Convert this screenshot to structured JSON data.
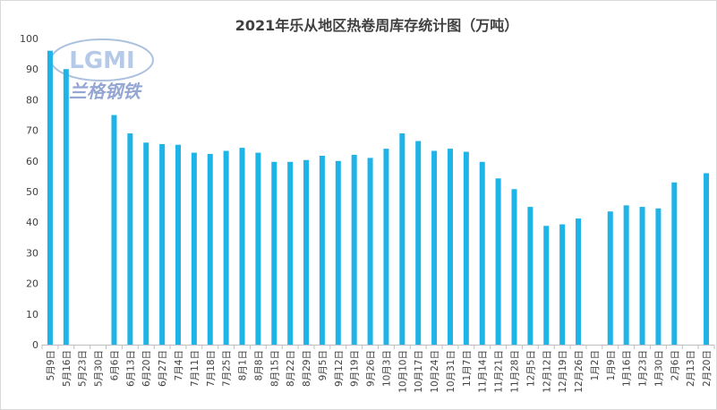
{
  "chart_data": {
    "type": "bar",
    "title": "2021年乐从地区热卷周库存统计图（万吨）",
    "xlabel": "",
    "ylabel": "",
    "ylim": [
      0,
      100
    ],
    "yticks": [
      0,
      10,
      20,
      30,
      40,
      50,
      60,
      70,
      80,
      90,
      100
    ],
    "grid": false,
    "bar_color": "#1fb4e8",
    "categories": [
      "5月9日",
      "5月16日",
      "5月23日",
      "5月30日",
      "6月6日",
      "6月13日",
      "6月20日",
      "6月27日",
      "7月4日",
      "7月11日",
      "7月18日",
      "7月25日",
      "8月1日",
      "8月8日",
      "8月15日",
      "8月22日",
      "8月29日",
      "9月5日",
      "9月12日",
      "9月19日",
      "9月26日",
      "10月3日",
      "10月10日",
      "10月17日",
      "10月24日",
      "10月31日",
      "11月7日",
      "11月14日",
      "11月21日",
      "11月28日",
      "12月5日",
      "12月12日",
      "12月19日",
      "12月26日",
      "1月2日",
      "1月9日",
      "1月16日",
      "1月23日",
      "1月30日",
      "2月6日",
      "2月13日",
      "2月20日"
    ],
    "values": [
      96,
      90,
      null,
      null,
      75,
      69,
      66,
      65.5,
      65.3,
      62.7,
      62.3,
      63.3,
      64.3,
      62.7,
      59.7,
      59.7,
      60.3,
      61.7,
      60,
      62,
      61,
      64,
      69,
      66.5,
      63.3,
      64,
      63,
      59.7,
      54.3,
      50.8,
      45,
      38.8,
      39.3,
      41.2,
      null,
      43.5,
      45.5,
      45,
      44.5,
      53,
      null,
      56
    ]
  },
  "watermark": {
    "logo_text": "LGMI",
    "cn_text": "兰格钢铁"
  }
}
